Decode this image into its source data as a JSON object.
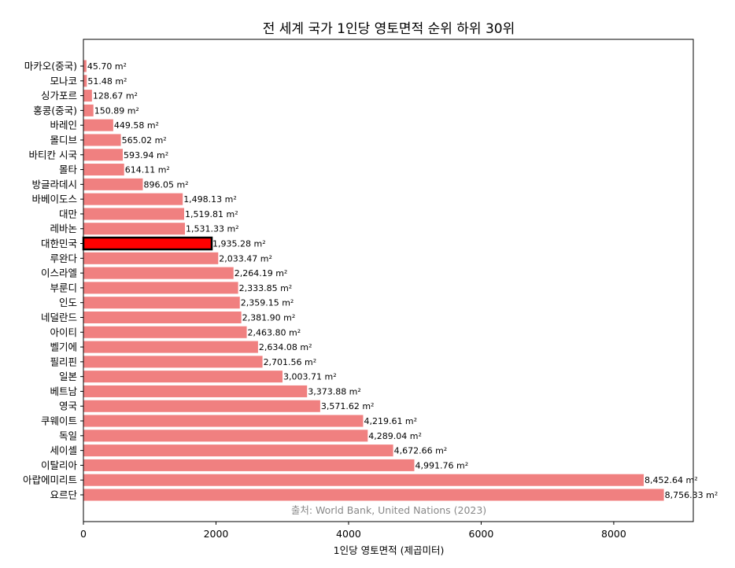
{
  "chart_data": {
    "type": "bar",
    "orientation": "horizontal",
    "title": "전 세계 국가 1인당 영토면적 순위 하위 30위",
    "xlabel": "1인당 영토면적 (제곱미터)",
    "ylabel": "",
    "xlim": [
      0,
      9200
    ],
    "xticks": [
      0,
      2000,
      4000,
      6000,
      8000
    ],
    "xtick_labels": [
      "0",
      "2000",
      "4000",
      "6000",
      "8000"
    ],
    "grid": false,
    "legend": "none",
    "bar_color": "#f08080",
    "highlight_color": "#ff0000",
    "highlight_edge_color": "#000000",
    "highlight_category": "대한민국",
    "categories": [
      "마카오(중국)",
      "모나코",
      "싱가포르",
      "홍콩(중국)",
      "바레인",
      "몰디브",
      "바티칸 시국",
      "몰타",
      "방글라데시",
      "바베이도스",
      "대만",
      "레바논",
      "대한민국",
      "루완다",
      "이스라엘",
      "부룬디",
      "인도",
      "네덜란드",
      "아이티",
      "벨기에",
      "필리핀",
      "일본",
      "베트남",
      "영국",
      "쿠웨이트",
      "독일",
      "세이셸",
      "이탈리아",
      "아랍에미리트",
      "요르단"
    ],
    "values": [
      45.7,
      51.48,
      128.67,
      150.89,
      449.58,
      565.02,
      593.94,
      614.11,
      896.05,
      1498.13,
      1519.81,
      1531.33,
      1935.28,
      2033.47,
      2264.19,
      2333.85,
      2359.15,
      2381.9,
      2463.8,
      2634.08,
      2701.56,
      3003.71,
      3373.88,
      3571.62,
      4219.61,
      4289.04,
      4672.66,
      4991.76,
      8452.64,
      8756.33
    ],
    "value_labels": [
      "45.70 m²",
      "51.48 m²",
      "128.67 m²",
      "150.89 m²",
      "449.58 m²",
      "565.02 m²",
      "593.94 m²",
      "614.11 m²",
      "896.05 m²",
      "1,498.13 m²",
      "1,519.81 m²",
      "1,531.33 m²",
      "1,935.28 m²",
      "2,033.47 m²",
      "2,264.19 m²",
      "2,333.85 m²",
      "2,359.15 m²",
      "2,381.90 m²",
      "2,463.80 m²",
      "2,634.08 m²",
      "2,701.56 m²",
      "3,003.71 m²",
      "3,373.88 m²",
      "3,571.62 m²",
      "4,219.61 m²",
      "4,289.04 m²",
      "4,672.66 m²",
      "4,991.76 m²",
      "8,452.64 m²",
      "8,756.33 m²"
    ],
    "annotation": "출처: World Bank, United Nations (2023)"
  }
}
